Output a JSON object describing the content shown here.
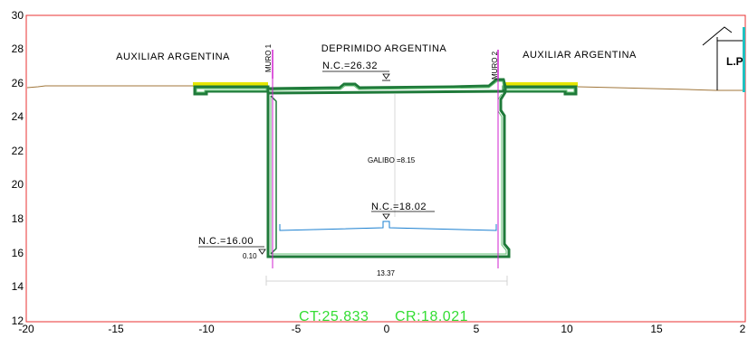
{
  "axes": {
    "x_ticks": [
      "-20",
      "-15",
      "-10",
      "-5",
      "0",
      "5",
      "10",
      "15",
      "2"
    ],
    "y_ticks": [
      "30",
      "28",
      "26",
      "24",
      "22",
      "20",
      "18",
      "16",
      "14",
      "12"
    ]
  },
  "labels": {
    "left_road": "AUXILIAR  ARGENTINA",
    "center_road": "DEPRIMIDO  ARGENTINA",
    "right_road": "AUXILIAR  ARGENTINA",
    "lp": "L.P",
    "wall_left": "MURO 1",
    "wall_right": "MURO 2",
    "nc_top": "N.C.=26.32",
    "nc_floor": "N.C.=18.02",
    "nc_bottom": "N.C.=16.00",
    "offset": "0.10",
    "clearance": "GALIBO  =8.15",
    "width": "13.37"
  },
  "footer": {
    "ct": "CT:25.833",
    "cr": "CR:18.021"
  },
  "colors": {
    "frame": "#e83030",
    "structure": "#1f7a3a",
    "ground": "#a0763a",
    "road": "#e6e600",
    "walls": "#d020d0",
    "floor": "#1a7fd0",
    "footer": "#33dd33"
  }
}
